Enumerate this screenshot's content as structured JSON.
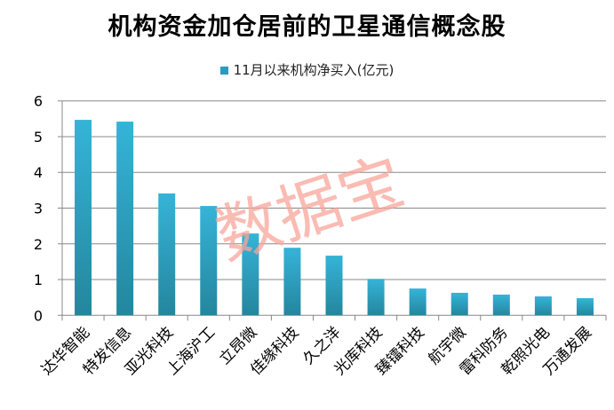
{
  "chart_data": {
    "type": "bar",
    "title": "机构资金加仓居前的卫星通信概念股",
    "legend": "11月以来机构净买入(亿元)",
    "legend_position": "top",
    "categories": [
      "达华智能",
      "特发信息",
      "亚光科技",
      "上海沪工",
      "立昂微",
      "佳缘科技",
      "久之洋",
      "光库科技",
      "臻镭科技",
      "航宇微",
      "雷科防务",
      "乾照光电",
      "万通发展"
    ],
    "series": [
      {
        "name": "11月以来机构净买入(亿元)",
        "values": [
          5.47,
          5.42,
          3.41,
          3.06,
          2.29,
          1.89,
          1.67,
          1.02,
          0.75,
          0.63,
          0.58,
          0.53,
          0.48
        ]
      }
    ],
    "ylim": [
      0,
      6
    ],
    "yticks": [
      "0",
      "1",
      "2",
      "3",
      "4",
      "5",
      "6"
    ],
    "grid": true,
    "bar_color": "#2a9cc0"
  },
  "watermark": "数据宝"
}
